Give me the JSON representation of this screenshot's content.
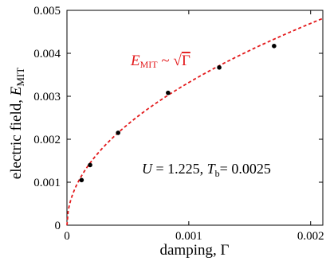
{
  "chart_data": {
    "type": "scatter",
    "title": "",
    "xlabel": "damping, Γ",
    "ylabel_prefix": "electric field, ",
    "ylabel_symbol": "E",
    "ylabel_sub": "MIT",
    "xlim": [
      0,
      0.0021
    ],
    "ylim": [
      0,
      0.005
    ],
    "x_ticks": [
      0,
      0.001,
      0.002
    ],
    "x_tick_labels": [
      "0",
      "0.001",
      "0.002"
    ],
    "y_ticks": [
      0,
      0.001,
      0.002,
      0.003,
      0.004,
      0.005
    ],
    "y_tick_labels": [
      "0",
      "0.001",
      "0.002",
      "0.003",
      "0.004",
      "0.005"
    ],
    "grid": false,
    "legend": "none",
    "series": [
      {
        "type": "scatter",
        "color": "#000000",
        "x": [
          0.00012,
          0.00019,
          0.00042,
          0.00083,
          0.00125,
          0.0017
        ],
        "y": [
          0.00105,
          0.0014,
          0.00215,
          0.00308,
          0.00367,
          0.00417
        ]
      },
      {
        "type": "fit_sqrt",
        "style": "dashed",
        "color": "#e31a1c",
        "coefficient": 0.105
      }
    ],
    "annotations": {
      "fit": {
        "symbol": "E",
        "sub": "MIT",
        "rel": " ~ ",
        "root": "√",
        "arg": "Γ"
      },
      "params": {
        "u_sym": "U",
        "u_val": " = 1.225, ",
        "t_sym": "T",
        "t_sub": "b",
        "t_val": "= 0.0025"
      }
    }
  }
}
